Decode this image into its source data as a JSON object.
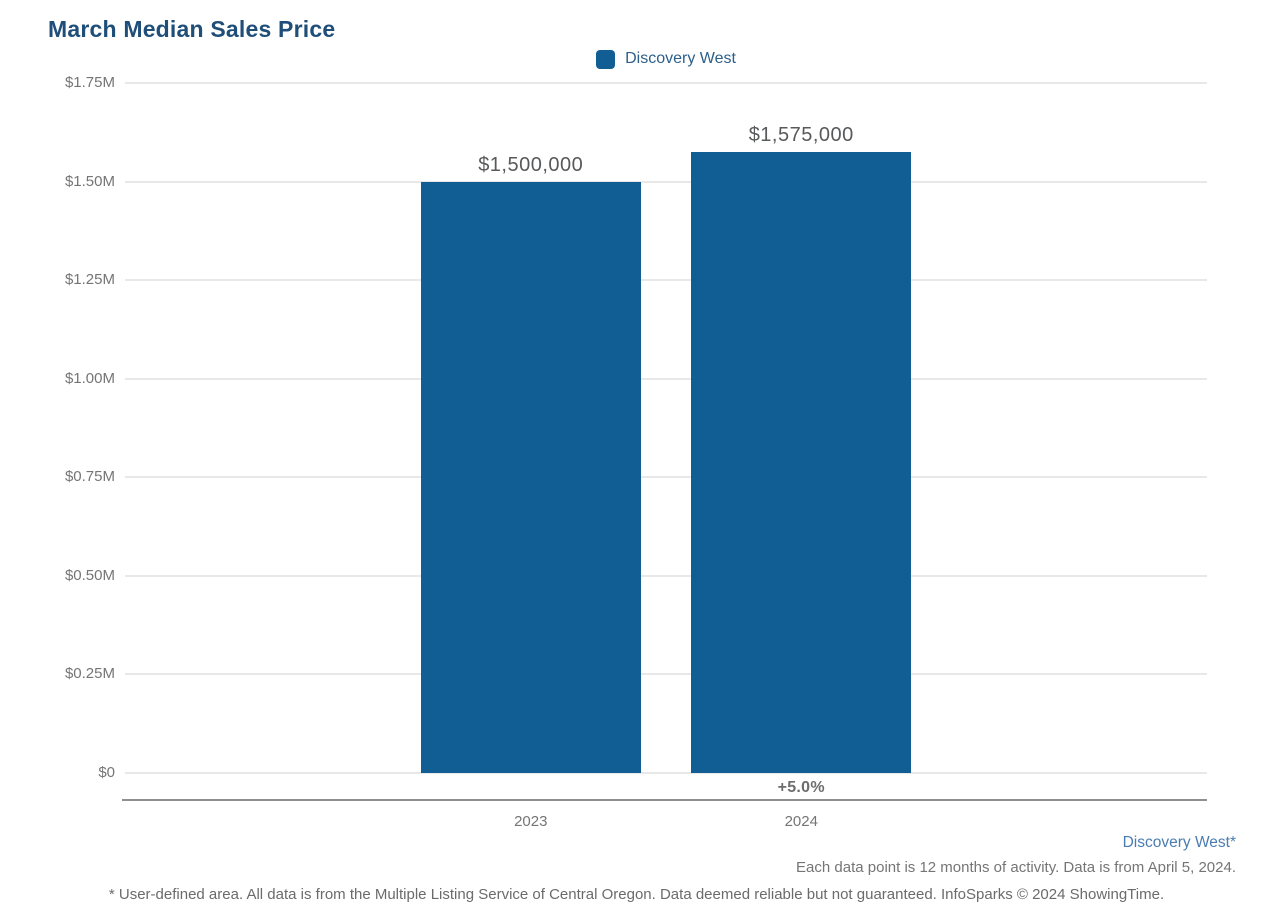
{
  "page": {
    "title": "March Median Sales Price"
  },
  "legend": {
    "label": "Discovery West"
  },
  "chart_data": {
    "type": "bar",
    "title": "March Median Sales Price",
    "series": [
      {
        "name": "Discovery West",
        "values": [
          1500000,
          1575000
        ]
      }
    ],
    "categories": [
      "2023",
      "2024"
    ],
    "value_labels": [
      "$1,500,000",
      "$1,575,000"
    ],
    "change_labels": [
      "",
      "+5.0%"
    ],
    "ylim": [
      0,
      1750000
    ],
    "ytick_interval": 250000,
    "ytick_labels": [
      "$0",
      "$0.25M",
      "$0.50M",
      "$0.75M",
      "$1.00M",
      "$1.25M",
      "$1.50M",
      "$1.75M"
    ],
    "grid": true,
    "legend_position": "top-center",
    "bar_color": "#115e95"
  },
  "footer": {
    "series_note": "Discovery West*",
    "data_note": "Each data point is 12 months of activity. Data is from April 5, 2024.",
    "disclaimer": "* User-defined area. All data is from the Multiple Listing Service of Central Oregon. Data deemed reliable but not guaranteed. InfoSparks © 2024 ShowingTime."
  },
  "colors": {
    "bar": "#115e95",
    "title": "#1f4e79",
    "legend_text": "#2d5f8a",
    "axis_label": "#757575",
    "value_label": "#58595b",
    "change_label": "#6d6d6d",
    "gridline": "#e8e8e8",
    "axis_line": "#8f8f8f",
    "footer_link": "#4a7cb2"
  }
}
